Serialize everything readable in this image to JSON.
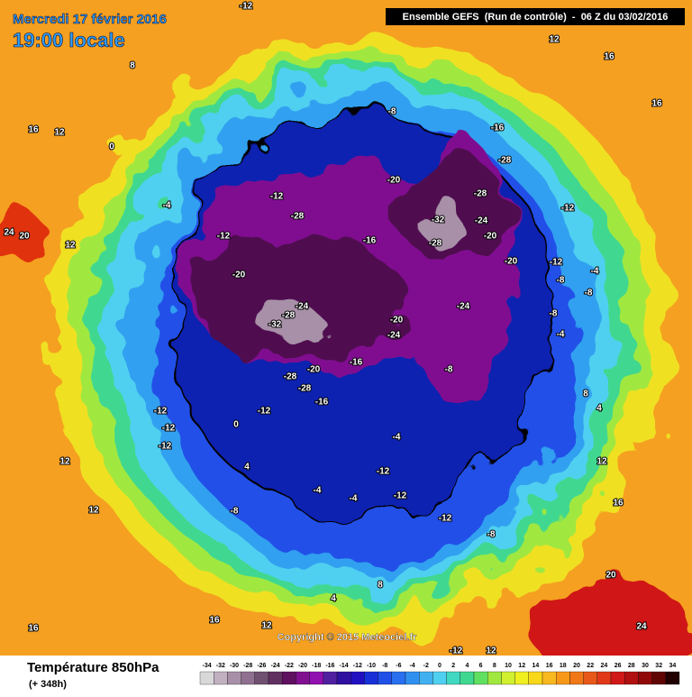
{
  "header": {
    "date": "Mercredi 17 février 2016",
    "time": "19:00 locale",
    "model": "Ensemble GEFS  (Run de contrôle)  -  06 Z du 03/02/2016"
  },
  "map": {
    "contour_labels": [
      -32,
      -28,
      -24,
      -28,
      -20,
      -12,
      -16,
      -20,
      -32,
      -28,
      -28,
      -28,
      -16,
      -24,
      -20,
      -20,
      -24,
      -20,
      -24,
      -8,
      -16,
      -28,
      -28,
      -20,
      -12,
      -12,
      -12,
      -12,
      -8,
      -4,
      -12,
      -12,
      -12,
      -8,
      -4,
      -8,
      4,
      0,
      0,
      -4,
      -12,
      -12,
      -12,
      -8,
      -8,
      -4,
      -8,
      12,
      12,
      16,
      12,
      16,
      12,
      16,
      16,
      12,
      20,
      24,
      16,
      12,
      16,
      20,
      24,
      12,
      8,
      -4,
      4,
      -12,
      -12,
      12,
      8,
      -16,
      -4,
      8,
      4
    ]
  },
  "footer": {
    "variable": "Température 850hPa",
    "lead": "(+ 348h)",
    "copyright": "Copyright © 2015 Meteociel.fr"
  },
  "legend": {
    "values": [
      -34,
      -32,
      -30,
      -28,
      -26,
      -24,
      -22,
      -20,
      -18,
      -16,
      -14,
      -12,
      -10,
      -8,
      -6,
      -4,
      -2,
      0,
      2,
      4,
      6,
      8,
      10,
      12,
      14,
      16,
      18,
      20,
      22,
      24,
      26,
      28,
      30,
      32,
      34
    ],
    "colors": [
      "#d8d8d8",
      "#c0b0c0",
      "#a890a8",
      "#907090",
      "#705070",
      "#603060",
      "#601060",
      "#801090",
      "#9010b0",
      "#5020a0",
      "#3010a0",
      "#2010c0",
      "#1830d8",
      "#2050e8",
      "#2870f0",
      "#3090f0",
      "#40b0f0",
      "#50d0f0",
      "#40d8c0",
      "#40d890",
      "#60e060",
      "#a0e840",
      "#d0f030",
      "#f0f020",
      "#f8d818",
      "#f8b820",
      "#f89818",
      "#f07818",
      "#e85818",
      "#e03818",
      "#d01818",
      "#b01010",
      "#900808",
      "#600404",
      "#200000"
    ]
  }
}
